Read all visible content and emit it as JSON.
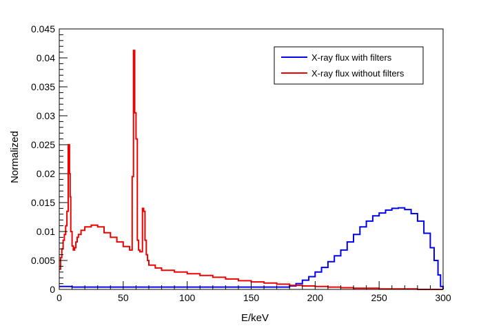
{
  "chart_data": {
    "type": "line",
    "title": "",
    "xlabel": "E/keV",
    "ylabel": "Normalized",
    "xlim": [
      0,
      300
    ],
    "ylim": [
      0,
      0.045
    ],
    "x_ticks": [
      "0",
      "50",
      "100",
      "150",
      "200",
      "250",
      "300"
    ],
    "y_ticks": [
      "0",
      "0.005",
      "0.01",
      "0.015",
      "0.02",
      "0.025",
      "0.03",
      "0.035",
      "0.04",
      "0.045"
    ],
    "grid": false,
    "legend_position": "top-right",
    "series": [
      {
        "name": "X-ray flux with filters",
        "color": "#0000ee",
        "style": "step",
        "x": [
          0,
          10,
          20,
          30,
          40,
          50,
          60,
          70,
          80,
          90,
          100,
          110,
          120,
          130,
          140,
          150,
          160,
          170,
          175,
          180,
          185,
          190,
          195,
          200,
          205,
          210,
          215,
          220,
          225,
          230,
          235,
          240,
          245,
          250,
          255,
          260,
          265,
          270,
          275,
          280,
          285,
          290,
          293,
          296,
          298,
          300
        ],
        "y": [
          0.0005,
          0.0004,
          0.0004,
          0.0004,
          0.0004,
          0.0004,
          0.0004,
          0.0004,
          0.0004,
          0.0004,
          0.0004,
          0.0004,
          0.0004,
          0.0004,
          0.0004,
          0.0004,
          0.0004,
          0.0004,
          0.0004,
          0.0006,
          0.001,
          0.0016,
          0.0022,
          0.003,
          0.0038,
          0.0048,
          0.0058,
          0.0068,
          0.0082,
          0.0095,
          0.0108,
          0.0118,
          0.0127,
          0.0132,
          0.0137,
          0.014,
          0.0141,
          0.0138,
          0.0131,
          0.0118,
          0.0097,
          0.0072,
          0.005,
          0.0025,
          0.0005,
          0.0
        ]
      },
      {
        "name": "X-ray flux without filters",
        "color": "#ee0000",
        "style": "step",
        "x": [
          0,
          1,
          2,
          3,
          4,
          5,
          6,
          7,
          8,
          8.5,
          9,
          10,
          11,
          12,
          13,
          14,
          15,
          17,
          20,
          25,
          30,
          35,
          40,
          45,
          50,
          55,
          57,
          58,
          59,
          60,
          61,
          62,
          63,
          64,
          65,
          66,
          67,
          68,
          69,
          70,
          75,
          80,
          90,
          100,
          110,
          120,
          130,
          140,
          150,
          160,
          170,
          180,
          190,
          200,
          210,
          220,
          230,
          240,
          250,
          260,
          270,
          280,
          290,
          295,
          300
        ],
        "y": [
          0.0035,
          0.0055,
          0.007,
          0.0085,
          0.0095,
          0.011,
          0.0135,
          0.025,
          0.02,
          0.016,
          0.01,
          0.0075,
          0.0068,
          0.0072,
          0.0082,
          0.009,
          0.0095,
          0.0102,
          0.0108,
          0.0111,
          0.0108,
          0.0098,
          0.009,
          0.0082,
          0.0074,
          0.0068,
          0.0195,
          0.0413,
          0.0305,
          0.026,
          0.0085,
          0.0068,
          0.0065,
          0.0065,
          0.014,
          0.0135,
          0.0085,
          0.006,
          0.005,
          0.0042,
          0.0037,
          0.0033,
          0.003,
          0.0027,
          0.0024,
          0.0021,
          0.0018,
          0.0015,
          0.0013,
          0.0011,
          0.0009,
          0.0007,
          0.0006,
          0.0005,
          0.0004,
          0.0003,
          0.0002,
          0.0002,
          0.0001,
          0.0001,
          0.0001,
          0.0,
          0.0,
          0.0,
          0.0
        ]
      }
    ]
  }
}
